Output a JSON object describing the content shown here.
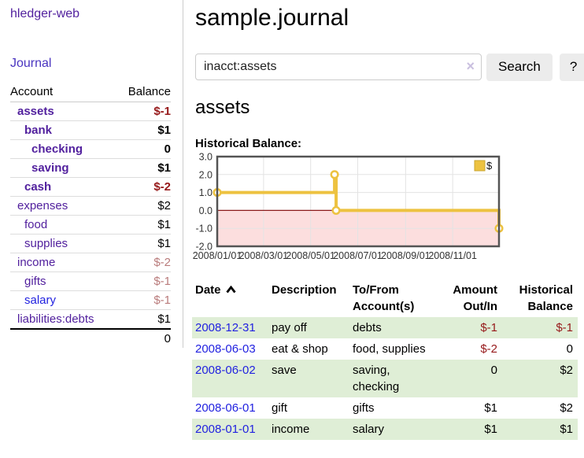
{
  "app": {
    "brand": "hledger-web"
  },
  "sidebar": {
    "nav": {
      "journal": "Journal"
    },
    "accounts_table": {
      "headers": {
        "account": "Account",
        "balance": "Balance"
      },
      "rows": [
        {
          "name": "assets",
          "balance": "$-1",
          "indent": 0,
          "bold": true,
          "name_style": "purple",
          "balance_style": "neg-strong"
        },
        {
          "name": "bank",
          "balance": "$1",
          "indent": 1,
          "bold": true,
          "name_style": "purple",
          "balance_style": ""
        },
        {
          "name": "checking",
          "balance": "0",
          "indent": 2,
          "bold": true,
          "name_style": "purple",
          "balance_style": ""
        },
        {
          "name": "saving",
          "balance": "$1",
          "indent": 2,
          "bold": true,
          "name_style": "purple",
          "balance_style": ""
        },
        {
          "name": "cash",
          "balance": "$-2",
          "indent": 1,
          "bold": true,
          "name_style": "purple",
          "balance_style": "neg-strong"
        },
        {
          "name": "expenses",
          "balance": "$2",
          "indent": 0,
          "bold": false,
          "name_style": "purple",
          "balance_style": ""
        },
        {
          "name": "food",
          "balance": "$1",
          "indent": 1,
          "bold": false,
          "name_style": "purple",
          "balance_style": ""
        },
        {
          "name": "supplies",
          "balance": "$1",
          "indent": 1,
          "bold": false,
          "name_style": "purple",
          "balance_style": ""
        },
        {
          "name": "income",
          "balance": "$-2",
          "indent": 0,
          "bold": false,
          "name_style": "purple",
          "balance_style": "neg-soft"
        },
        {
          "name": "gifts",
          "balance": "$-1",
          "indent": 1,
          "bold": false,
          "name_style": "purple",
          "balance_style": "neg-soft"
        },
        {
          "name": "salary",
          "balance": "$-1",
          "indent": 1,
          "bold": false,
          "name_style": "blue",
          "balance_style": "neg-soft"
        },
        {
          "name": "liabilities:debts",
          "balance": "$1",
          "indent": 0,
          "bold": false,
          "name_style": "purple",
          "balance_style": ""
        }
      ],
      "total": "0"
    }
  },
  "header": {
    "title": "sample.journal"
  },
  "search": {
    "value": "inacct:assets",
    "clear_icon": "×",
    "button_label": "Search",
    "help_label": "?"
  },
  "account_page": {
    "heading": "assets",
    "chart_label": "Historical Balance:"
  },
  "chart_data": {
    "type": "line",
    "step": true,
    "title": "Historical Balance:",
    "series": [
      {
        "name": "$",
        "color": "#edc240",
        "points": [
          [
            "2008-01-01",
            1
          ],
          [
            "2008-06-01",
            2
          ],
          [
            "2008-06-03",
            0
          ],
          [
            "2008-12-31",
            -1
          ]
        ]
      }
    ],
    "x_range": [
      "2008-01-01",
      "2008-12-31"
    ],
    "x_tick_labels": [
      "2008/01/01",
      "2008/03/01",
      "2008/05/01",
      "2008/07/01",
      "2008/09/01",
      "2008/11/01"
    ],
    "x_tick_dates": [
      "2008-01-01",
      "2008-03-01",
      "2008-05-01",
      "2008-07-01",
      "2008-09-01",
      "2008-11-01"
    ],
    "y_ticks": [
      "3.0",
      "2.0",
      "1.0",
      "0.0",
      "-1.0",
      "-2.0"
    ],
    "ylim": [
      -2,
      3
    ],
    "grid": true,
    "legend_position": "top-right",
    "colors": {
      "line": "#edc240",
      "marker_fill": "#ffffff",
      "negative_region": "#fcdede",
      "zero_line": "#8b1a1a",
      "gridline": "#e3e3e3",
      "border": "#545454"
    }
  },
  "register": {
    "columns": [
      "Date",
      "Description",
      "To/From Account(s)",
      "Amount Out/In",
      "Historical Balance"
    ],
    "rows": [
      {
        "date": "2008-12-31",
        "description": "pay off",
        "accounts": "debts",
        "amount": "$-1",
        "amount_negative": true,
        "balance": "$-1",
        "balance_negative": true
      },
      {
        "date": "2008-06-03",
        "description": "eat & shop",
        "accounts": "food, supplies",
        "amount": "$-2",
        "amount_negative": true,
        "balance": "0",
        "balance_negative": false
      },
      {
        "date": "2008-06-02",
        "description": "save",
        "accounts": "saving, checking",
        "amount": "0",
        "amount_negative": false,
        "balance": "$2",
        "balance_negative": false
      },
      {
        "date": "2008-06-01",
        "description": "gift",
        "accounts": "gifts",
        "amount": "$1",
        "amount_negative": false,
        "balance": "$2",
        "balance_negative": false
      },
      {
        "date": "2008-01-01",
        "description": "income",
        "accounts": "salary",
        "amount": "$1",
        "amount_negative": false,
        "balance": "$1",
        "balance_negative": false
      }
    ]
  },
  "colors": {
    "link_purple": "#52219e",
    "link_blue": "#2222e0",
    "negative_strong": "#96191a",
    "negative_soft": "#b97b7b",
    "row_green": "#dfeed6",
    "button_bg": "#ececec"
  }
}
